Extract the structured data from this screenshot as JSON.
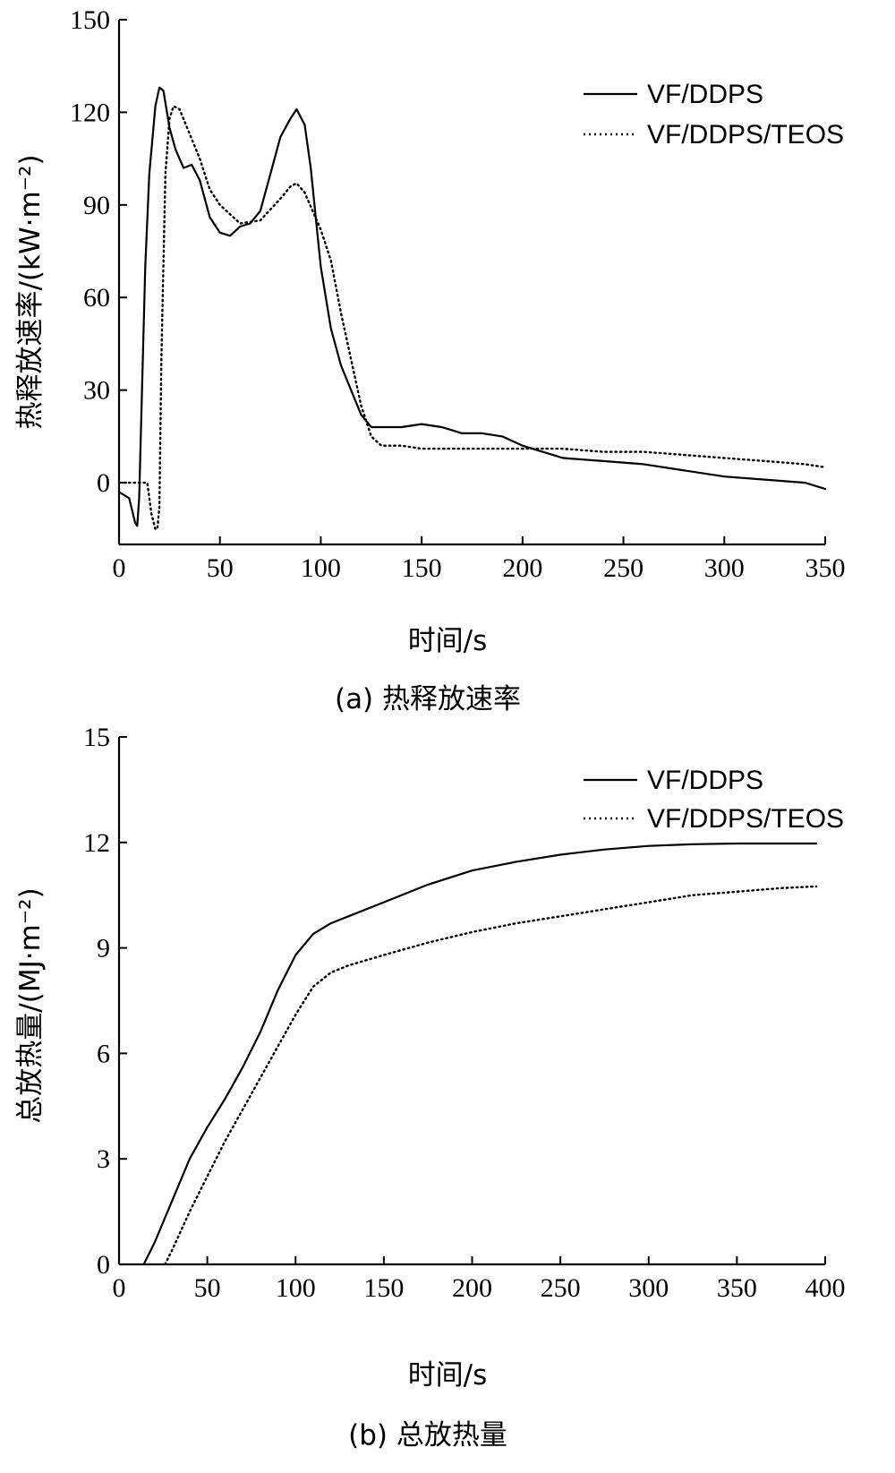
{
  "chart_data": [
    {
      "type": "line",
      "caption": "(a)  热释放速率",
      "xlabel": "时间/s",
      "ylabel": "热释放速率/(kW·m⁻²)",
      "xlim": [
        0,
        350
      ],
      "ylim": [
        -20,
        150
      ],
      "xticks": [
        0,
        50,
        100,
        150,
        200,
        250,
        300,
        350
      ],
      "yticks": [
        0,
        30,
        60,
        90,
        120,
        150
      ],
      "legend": "top-right",
      "series": [
        {
          "name": "VF/DDPS",
          "style": "solid",
          "x": [
            0,
            5,
            8,
            9,
            10,
            13,
            15,
            18,
            20,
            22,
            25,
            28,
            32,
            36,
            40,
            45,
            50,
            55,
            60,
            65,
            70,
            75,
            80,
            85,
            88,
            92,
            95,
            100,
            105,
            110,
            115,
            120,
            125,
            130,
            140,
            150,
            160,
            170,
            180,
            190,
            200,
            220,
            240,
            260,
            280,
            300,
            320,
            340,
            350
          ],
          "y": [
            -3,
            -5,
            -13,
            -14,
            -5,
            70,
            100,
            122,
            128,
            127,
            115,
            108,
            102,
            103,
            98,
            86,
            81,
            80,
            83,
            84,
            88,
            100,
            112,
            118,
            121,
            116,
            102,
            70,
            50,
            38,
            30,
            22,
            18,
            18,
            18,
            19,
            18,
            16,
            16,
            15,
            12,
            8,
            7,
            6,
            4,
            2,
            1,
            0,
            -2
          ]
        },
        {
          "name": "VF/DDPS/TEOS",
          "style": "dotted",
          "x": [
            0,
            10,
            12,
            14,
            16,
            18,
            19,
            20,
            21,
            23,
            25,
            27,
            30,
            35,
            40,
            45,
            50,
            55,
            60,
            70,
            80,
            85,
            88,
            92,
            96,
            100,
            105,
            110,
            115,
            120,
            125,
            130,
            140,
            150,
            160,
            170,
            180,
            200,
            220,
            240,
            260,
            280,
            300,
            320,
            340,
            350
          ],
          "y": [
            0,
            0,
            0,
            0,
            -10,
            -15,
            -15,
            -8,
            40,
            100,
            118,
            122,
            121,
            113,
            105,
            95,
            90,
            87,
            84,
            85,
            92,
            96,
            97,
            94,
            88,
            82,
            72,
            55,
            40,
            25,
            15,
            12,
            12,
            11,
            11,
            11,
            11,
            11,
            11,
            10,
            10,
            9,
            8,
            7,
            6,
            5
          ]
        }
      ]
    },
    {
      "type": "line",
      "caption": "(b)  总放热量",
      "xlabel": "时间/s",
      "ylabel": "总放热量/(MJ·m⁻²)",
      "xlim": [
        0,
        400
      ],
      "ylim": [
        0,
        15
      ],
      "xticks": [
        0,
        50,
        100,
        150,
        200,
        250,
        300,
        350,
        400
      ],
      "yticks": [
        0,
        3,
        6,
        9,
        12,
        15
      ],
      "legend": "top-right",
      "series": [
        {
          "name": "VF/DDPS",
          "style": "solid",
          "x": [
            14,
            20,
            30,
            40,
            50,
            60,
            70,
            80,
            90,
            100,
            110,
            120,
            130,
            150,
            175,
            200,
            225,
            250,
            275,
            300,
            325,
            350,
            375,
            395
          ],
          "y": [
            0,
            0.6,
            1.8,
            3.0,
            3.9,
            4.7,
            5.6,
            6.6,
            7.8,
            8.8,
            9.4,
            9.7,
            9.9,
            10.3,
            10.8,
            11.2,
            11.45,
            11.65,
            11.8,
            11.9,
            11.95,
            11.97,
            11.97,
            11.97
          ]
        },
        {
          "name": "VF/DDPS/TEOS",
          "style": "dotted",
          "x": [
            26,
            30,
            40,
            50,
            60,
            70,
            80,
            90,
            100,
            110,
            120,
            130,
            150,
            175,
            200,
            225,
            250,
            275,
            300,
            325,
            350,
            375,
            395
          ],
          "y": [
            0,
            0.4,
            1.5,
            2.5,
            3.5,
            4.4,
            5.3,
            6.2,
            7.1,
            7.9,
            8.3,
            8.5,
            8.8,
            9.15,
            9.45,
            9.7,
            9.9,
            10.1,
            10.3,
            10.5,
            10.6,
            10.7,
            10.75
          ]
        }
      ]
    }
  ]
}
